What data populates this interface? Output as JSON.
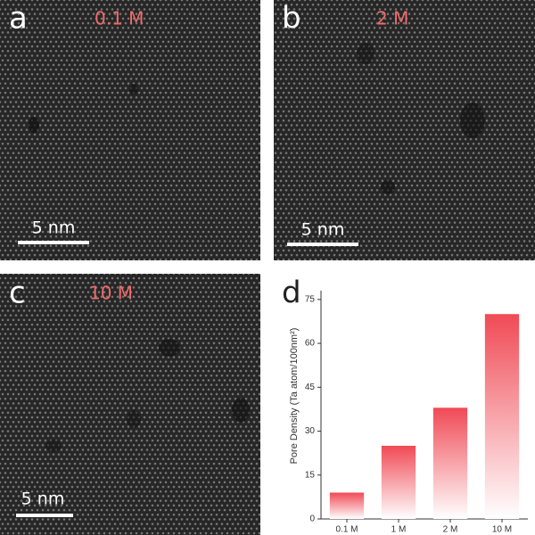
{
  "panels": [
    {
      "letter": "a",
      "concentration": "0.1 M",
      "scale_bar": "5 nm"
    },
    {
      "letter": "b",
      "concentration": "2 M",
      "scale_bar": "5 nm"
    },
    {
      "letter": "c",
      "concentration": "10 M",
      "scale_bar": "5 nm"
    }
  ],
  "chart_data": {
    "type": "bar",
    "label": "d",
    "y_label": "Pore Density (Ta atom/100nm²)",
    "categories": [
      "0.1 M",
      "1 M",
      "2 M",
      "10 M"
    ],
    "values": [
      9,
      25,
      38,
      70
    ],
    "color": "#f04a55",
    "ylim": [
      0,
      78
    ],
    "yticks": [
      0,
      15,
      30,
      45,
      60,
      75
    ]
  }
}
